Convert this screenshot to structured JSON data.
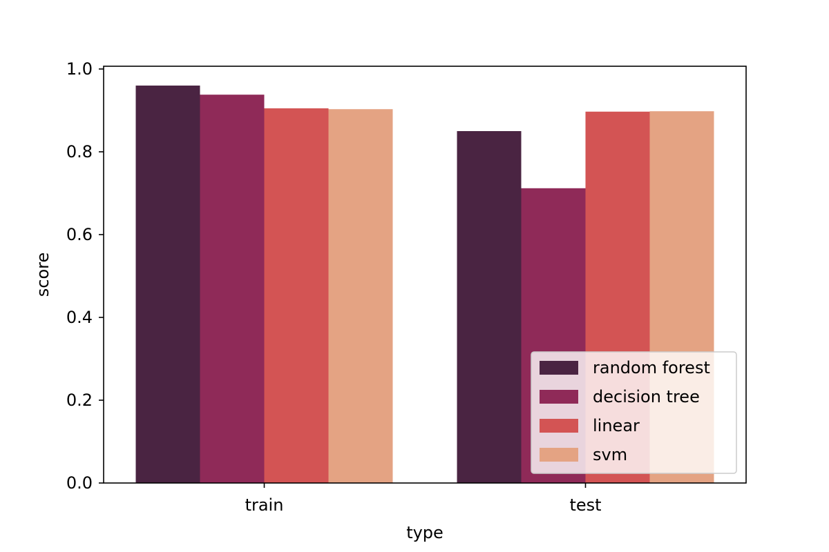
{
  "chart_data": {
    "type": "bar",
    "title": "",
    "xlabel": "type",
    "ylabel": "score",
    "categories": [
      "train",
      "test"
    ],
    "ylim": [
      0,
      1.0
    ],
    "yticks": [
      0.0,
      0.2,
      0.4,
      0.6,
      0.8,
      1.0
    ],
    "ytick_labels": [
      "0.0",
      "0.2",
      "0.4",
      "0.6",
      "0.8",
      "1.0"
    ],
    "grid": false,
    "legend_position": "lower right",
    "series": [
      {
        "name": "random forest",
        "color": "#4a2442",
        "values": [
          0.96,
          0.85
        ]
      },
      {
        "name": "decision tree",
        "color": "#8f2a58",
        "values": [
          0.938,
          0.712
        ]
      },
      {
        "name": "linear",
        "color": "#d35454",
        "values": [
          0.905,
          0.897
        ]
      },
      {
        "name": "svm",
        "color": "#e4a383",
        "values": [
          0.903,
          0.898
        ]
      }
    ]
  }
}
